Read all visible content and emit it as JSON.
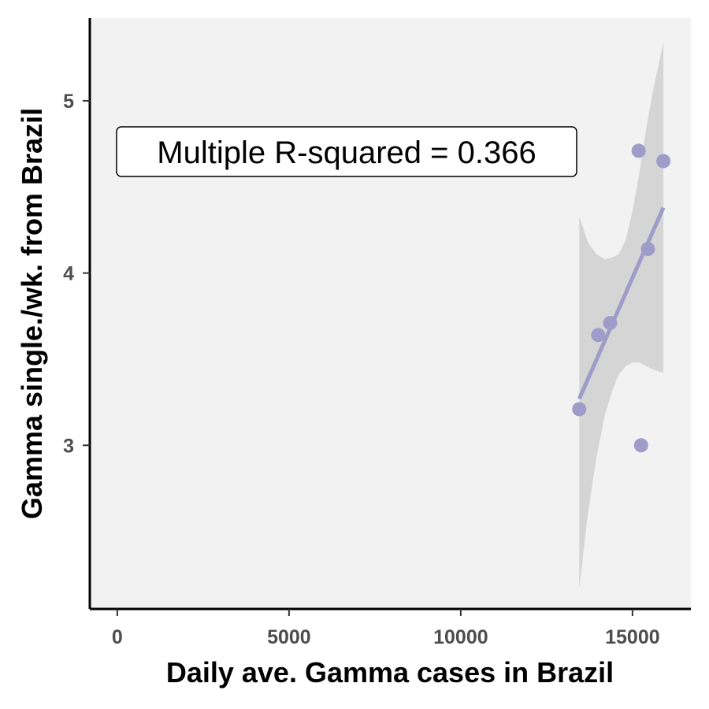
{
  "chart_data": {
    "type": "scatter",
    "title": "",
    "xlabel": "Daily ave. Gamma cases in Brazil",
    "ylabel": "Gamma single./wk. from Brazil",
    "xlim": [
      -800,
      16700
    ],
    "ylim": [
      2.05,
      5.48
    ],
    "x_ticks": [
      0,
      5000,
      10000,
      15000
    ],
    "y_ticks": [
      3,
      4,
      5
    ],
    "x_tick_labels": [
      "0",
      "5000",
      "10000",
      "15000"
    ],
    "y_tick_labels": [
      "3",
      "4",
      "5"
    ],
    "grid": false,
    "annotation": "Multiple R-squared = 0.366",
    "points": [
      {
        "x": 13450,
        "y": 3.21
      },
      {
        "x": 14000,
        "y": 3.64
      },
      {
        "x": 14350,
        "y": 3.71
      },
      {
        "x": 15180,
        "y": 4.71
      },
      {
        "x": 15250,
        "y": 3.0
      },
      {
        "x": 15450,
        "y": 4.14
      },
      {
        "x": 15900,
        "y": 4.65
      }
    ],
    "regression": {
      "x_start": 13450,
      "y_start": 3.27,
      "x_end": 15900,
      "y_end": 4.38
    },
    "confidence_band": {
      "x": [
        13450,
        13700,
        13950,
        14200,
        14400,
        14600,
        14800,
        15000,
        15200,
        15400,
        15600,
        15900
      ],
      "lower": [
        2.17,
        2.6,
        2.93,
        3.18,
        3.31,
        3.41,
        3.46,
        3.48,
        3.48,
        3.46,
        3.44,
        3.42
      ],
      "upper": [
        4.33,
        4.18,
        4.11,
        4.08,
        4.09,
        4.11,
        4.19,
        4.36,
        4.58,
        4.84,
        5.06,
        5.34
      ]
    },
    "colors": {
      "panel": "#f2f2f2",
      "points": "#a09cc9",
      "line": "#a09cc9",
      "band": "#d0d0d0",
      "axis": "#000000"
    }
  }
}
